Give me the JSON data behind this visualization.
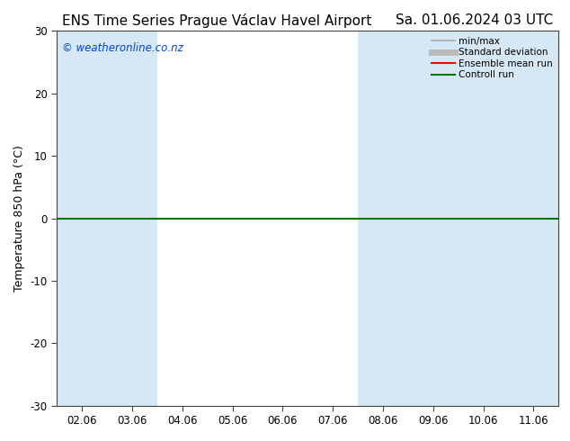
{
  "title_left": "ENS Time Series Prague Václav Havel Airport",
  "title_right": "Sa. 01.06.2024 03 UTC",
  "ylabel": "Temperature 850 hPa (°C)",
  "watermark": "© weatheronline.co.nz",
  "ylim": [
    -30,
    30
  ],
  "yticks": [
    -30,
    -20,
    -10,
    0,
    10,
    20,
    30
  ],
  "x_labels": [
    "02.06",
    "03.06",
    "04.06",
    "05.06",
    "06.06",
    "07.06",
    "08.06",
    "09.06",
    "10.06",
    "11.06"
  ],
  "x_positions": [
    0,
    1,
    2,
    3,
    4,
    5,
    6,
    7,
    8,
    9
  ],
  "xlim": [
    -0.5,
    9.5
  ],
  "shaded_columns": [
    0,
    1,
    6,
    7,
    8,
    9
  ],
  "shade_color": "#d6e8f5",
  "bg_color": "#ffffff",
  "plot_bg_color": "#ffffff",
  "legend_items": [
    {
      "label": "min/max",
      "color": "#aaaaaa",
      "lw": 1.2,
      "style": "-"
    },
    {
      "label": "Standard deviation",
      "color": "#bbbbbb",
      "lw": 5,
      "style": "-"
    },
    {
      "label": "Ensemble mean run",
      "color": "#ff0000",
      "lw": 1.5,
      "style": "-"
    },
    {
      "label": "Controll run",
      "color": "#007700",
      "lw": 1.5,
      "style": "-"
    }
  ],
  "title_fontsize": 11,
  "label_fontsize": 9,
  "tick_fontsize": 8.5,
  "watermark_fontsize": 8.5,
  "watermark_color": "#0044cc",
  "controll_color": "#007700",
  "zero_line_color": "#007700",
  "zero_line_lw": 1.5,
  "spine_color": "#444444",
  "figsize": [
    6.34,
    4.9
  ],
  "dpi": 100
}
